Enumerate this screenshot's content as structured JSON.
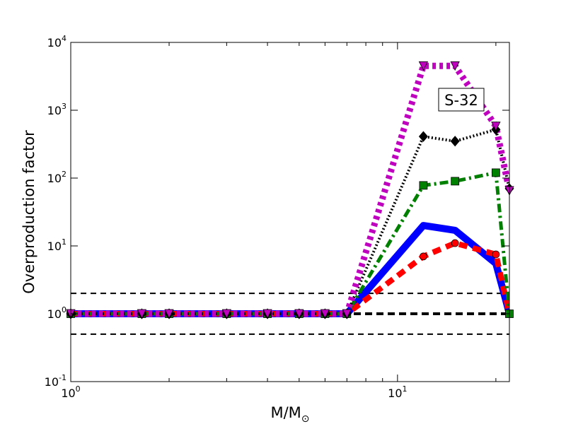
{
  "chart_data": {
    "type": "line",
    "xscale": "log",
    "yscale": "log",
    "xlim": [
      1,
      22
    ],
    "ylim": [
      0.1,
      10000
    ],
    "xlabel": "M/M",
    "xlabel_subscript": "⊙",
    "ylabel": "Overproduction factor",
    "x_ticks": [
      {
        "base": "10",
        "exp": "0",
        "value": 1
      },
      {
        "base": "10",
        "exp": "1",
        "value": 10
      }
    ],
    "y_ticks": [
      {
        "base": "10",
        "exp": "-1",
        "value": 0.1
      },
      {
        "base": "10",
        "exp": "0",
        "value": 1
      },
      {
        "base": "10",
        "exp": "1",
        "value": 10
      },
      {
        "base": "10",
        "exp": "2",
        "value": 100
      },
      {
        "base": "10",
        "exp": "3",
        "value": 1000
      },
      {
        "base": "10",
        "exp": "4",
        "value": 10000
      }
    ],
    "annotation": "S-32",
    "grid": false,
    "reference_lines": [
      {
        "y": 2.0,
        "style": "dashed",
        "color": "#000000",
        "weight": "thin"
      },
      {
        "y": 1.0,
        "style": "dashed",
        "color": "#000000",
        "weight": "thick"
      },
      {
        "y": 0.5,
        "style": "dashed",
        "color": "#000000",
        "weight": "thin"
      }
    ],
    "series": [
      {
        "color": "#0000ff",
        "line": "solid",
        "marker": "none",
        "x": [
          1,
          1.65,
          2,
          3,
          4,
          5,
          6,
          7,
          12,
          15,
          20,
          22
        ],
        "y": [
          1,
          1,
          1,
          1,
          1,
          1,
          1,
          1,
          20,
          17,
          5.5,
          1.0
        ]
      },
      {
        "color": "#ff0000",
        "line": "dashed",
        "marker": "circle",
        "x": [
          1,
          1.65,
          2,
          3,
          4,
          5,
          6,
          7,
          12,
          15,
          20,
          22
        ],
        "y": [
          1,
          1,
          1,
          1,
          1,
          1,
          1,
          1,
          7,
          11,
          7.5,
          1.0
        ]
      },
      {
        "color": "#008000",
        "line": "dashdot",
        "marker": "square",
        "x": [
          1,
          1.65,
          2,
          3,
          4,
          5,
          6,
          7,
          12,
          15,
          20,
          22
        ],
        "y": [
          1,
          1,
          1,
          1,
          1,
          1,
          1,
          1,
          78,
          90,
          120,
          1.0
        ]
      },
      {
        "color": "#000000",
        "line": "dotted",
        "marker": "diamond",
        "x": [
          1,
          1.65,
          2,
          3,
          4,
          5,
          6,
          7,
          12,
          15,
          20,
          22
        ],
        "y": [
          1,
          1,
          1,
          1,
          1,
          1,
          1,
          1,
          410,
          350,
          520,
          70
        ]
      },
      {
        "color": "#bf00bf",
        "line": "dotted",
        "marker": "triangle-down",
        "x": [
          1,
          1.65,
          2,
          3,
          4,
          5,
          6,
          7,
          12,
          15,
          20,
          22
        ],
        "y": [
          1,
          1,
          1,
          1,
          1,
          1,
          1,
          1,
          4500,
          4500,
          580,
          65
        ]
      }
    ]
  }
}
